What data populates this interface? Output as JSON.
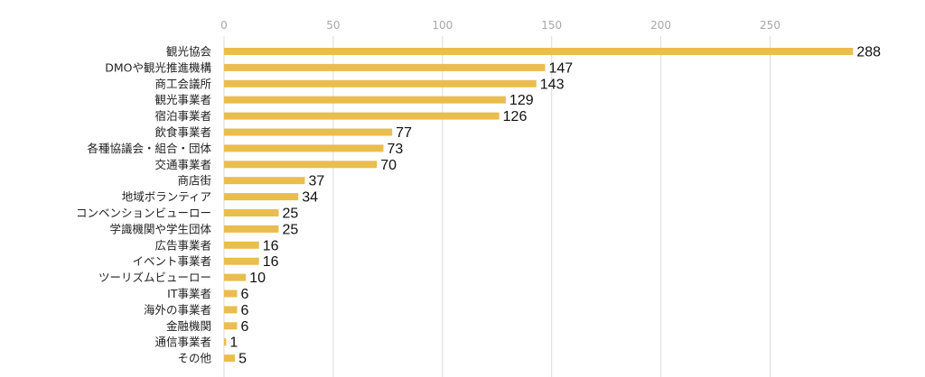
{
  "chart_data": {
    "type": "bar",
    "orientation": "horizontal",
    "title": "",
    "xlabel": "",
    "ylabel": "",
    "xlim": [
      0,
      288
    ],
    "ticks": [
      0,
      50,
      100,
      150,
      200,
      250
    ],
    "tick_labels": [
      "0",
      "50",
      "100",
      "150",
      "200",
      "250"
    ],
    "grid": true,
    "bar_color": "#e9bd4e",
    "grid_color": "#dcdcdc",
    "categories": [
      "観光協会",
      "DMOや観光推進機構",
      "商工会議所",
      "観光事業者",
      "宿泊事業者",
      "飲食事業者",
      "各種協議会・組合・団体",
      "交通事業者",
      "商店街",
      "地域ボランティア",
      "コンベンションビューロー",
      "学識機関や学生団体",
      "広告事業者",
      "イベント事業者",
      "ツーリズムビューロー",
      "IT事業者",
      "海外の事業者",
      "金融機関",
      "通信事業者",
      "その他"
    ],
    "values": [
      288,
      147,
      143,
      129,
      126,
      77,
      73,
      70,
      37,
      34,
      25,
      25,
      16,
      16,
      10,
      6,
      6,
      6,
      1,
      5
    ],
    "value_labels": [
      "288",
      "147",
      "143",
      "129",
      "126",
      "77",
      "73",
      "70",
      "37",
      "34",
      "25",
      "25",
      "16",
      "16",
      "10",
      "6",
      "6",
      "6",
      "1",
      "5"
    ]
  }
}
